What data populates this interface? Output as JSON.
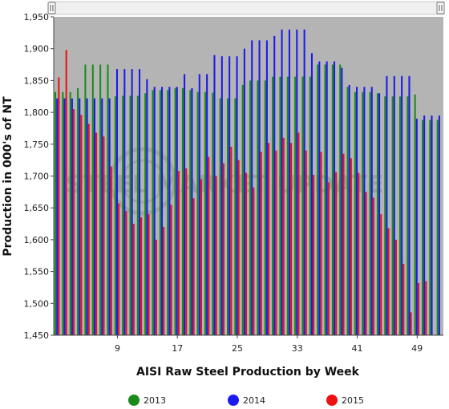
{
  "chart_data": {
    "type": "bar",
    "xlabel": "AISI Raw Steel Production by Week",
    "ylabel": "Production in 000's of NT",
    "ylim": [
      1450,
      1950
    ],
    "yticks": [
      "1,450",
      "1,500",
      "1,550",
      "1,600",
      "1,650",
      "1,700",
      "1,750",
      "1,800",
      "1,850",
      "1,900",
      "1,950"
    ],
    "xtick_weeks": [
      9,
      17,
      25,
      33,
      41,
      49
    ],
    "grid": false,
    "legend_placement": "bottom",
    "watermark": "STEEL MARKET UPDATE",
    "series": [
      {
        "name": "2013",
        "color": "#1a8a1a",
        "values": [
          1832,
          1832,
          1832,
          1838,
          1875,
          1875,
          1875,
          1875,
          1825,
          1826,
          1826,
          1826,
          1830,
          1835,
          1835,
          1835,
          1838,
          1838,
          1835,
          1832,
          1832,
          1831,
          1822,
          1822,
          1822,
          1843,
          1850,
          1850,
          1850,
          1856,
          1856,
          1856,
          1856,
          1856,
          1856,
          1875,
          1875,
          1875,
          1875,
          1840,
          1832,
          1832,
          1832,
          1830,
          1825,
          1825,
          1825,
          1825,
          1828,
          1788,
          1788,
          1788
        ]
      },
      {
        "name": "2014",
        "color": "#1a1aee",
        "values": [
          1822,
          1822,
          1822,
          1822,
          1822,
          1822,
          1822,
          1822,
          1868,
          1868,
          1868,
          1868,
          1852,
          1840,
          1840,
          1840,
          1840,
          1860,
          1838,
          1860,
          1860,
          1890,
          1888,
          1888,
          1888,
          1900,
          1913,
          1913,
          1913,
          1920,
          1930,
          1930,
          1930,
          1930,
          1893,
          1880,
          1880,
          1880,
          1870,
          1843,
          1840,
          1840,
          1840,
          1830,
          1857,
          1857,
          1857,
          1857,
          1790,
          1795,
          1795,
          1795
        ]
      },
      {
        "name": "2015",
        "color": "#ee1111",
        "values": [
          1855,
          1898,
          1805,
          1796,
          1782,
          1768,
          1762,
          1715,
          1657,
          1645,
          1625,
          1635,
          1640,
          1600,
          1620,
          1655,
          1708,
          1712,
          1665,
          1695,
          1730,
          1700,
          1720,
          1746,
          1725,
          1705,
          1682,
          1738,
          1752,
          1740,
          1760,
          1752,
          1768,
          1740,
          1702,
          1738,
          1690,
          1706,
          1735,
          1728,
          1705,
          1675,
          1666,
          1640,
          1618,
          1600,
          1562,
          1486,
          1532,
          1535
        ]
      }
    ]
  }
}
